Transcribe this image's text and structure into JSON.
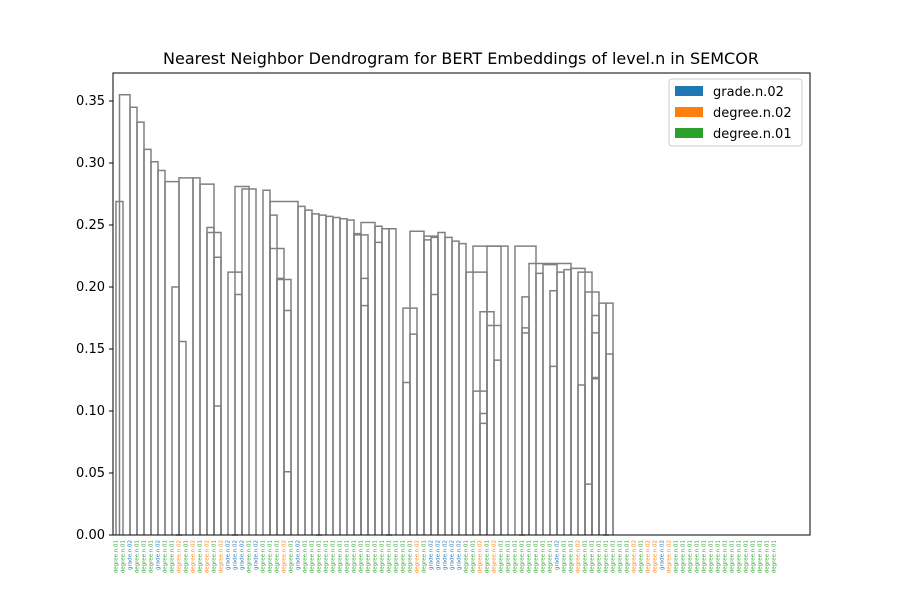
{
  "chart_data": {
    "type": "dendrogram",
    "title": "Nearest Neighbor Dendrogram for BERT Embeddings of level.n in SEMCOR",
    "xlabel": "",
    "ylabel": "",
    "ylim": [
      0,
      0.37
    ],
    "yticks": [
      0.0,
      0.05,
      0.1,
      0.15,
      0.2,
      0.25,
      0.3,
      0.35
    ],
    "ytick_labels": [
      "0.00",
      "0.05",
      "0.10",
      "0.15",
      "0.20",
      "0.25",
      "0.30",
      "0.35"
    ],
    "grid": false,
    "legend": {
      "placement": "top-right",
      "entries": [
        {
          "label": "grade.n.02",
          "color": "#1f77b4"
        },
        {
          "label": "degree.n.02",
          "color": "#ff7f0e"
        },
        {
          "label": "degree.n.01",
          "color": "#2ca02c"
        }
      ]
    },
    "link_color": "#808080",
    "leaf_labels": [
      "degree.n.01",
      "degree.n.01",
      "grade.n.02",
      "degree.n.01",
      "degree.n.01",
      "degree.n.01",
      "grade.n.02",
      "degree.n.01",
      "degree.n.01",
      "degree.n.02",
      "degree.n.01",
      "degree.n.02",
      "degree.n.01",
      "degree.n.02",
      "degree.n.01",
      "degree.n.02",
      "grade.n.02",
      "grade.n.02",
      "grade.n.02",
      "degree.n.01",
      "grade.n.02",
      "degree.n.01",
      "degree.n.01",
      "degree.n.01",
      "degree.n.02",
      "degree.n.01",
      "grade.n.02",
      "degree.n.01",
      "degree.n.01",
      "degree.n.01",
      "degree.n.01",
      "degree.n.01",
      "degree.n.01",
      "degree.n.01",
      "degree.n.01",
      "degree.n.01",
      "degree.n.01",
      "degree.n.01",
      "degree.n.01",
      "degree.n.01",
      "degree.n.01",
      "degree.n.01",
      "degree.n.01",
      "degree.n.02",
      "degree.n.01",
      "grade.n.02",
      "grade.n.02",
      "grade.n.02",
      "grade.n.02",
      "grade.n.02",
      "degree.n.01",
      "degree.n.01",
      "degree.n.02",
      "degree.n.01",
      "degree.n.02",
      "degree.n.01",
      "degree.n.01",
      "degree.n.01",
      "degree.n.01",
      "degree.n.01",
      "degree.n.01",
      "degree.n.01",
      "degree.n.01",
      "grade.n.02",
      "degree.n.01",
      "degree.n.01",
      "degree.n.02",
      "degree.n.01",
      "degree.n.01",
      "degree.n.01",
      "degree.n.01",
      "degree.n.01",
      "degree.n.01",
      "degree.n.01",
      "degree.n.02",
      "degree.n.01",
      "degree.n.02",
      "degree.n.02",
      "grade.n.02",
      "degree.n.02",
      "degree.n.01",
      "degree.n.01",
      "degree.n.01",
      "degree.n.01",
      "degree.n.01",
      "degree.n.01",
      "degree.n.01",
      "degree.n.01",
      "degree.n.01",
      "degree.n.01",
      "degree.n.01",
      "degree.n.01",
      "degree.n.01",
      "degree.n.01",
      "degree.n.01"
    ],
    "links": [
      {
        "l": 0,
        "r": 1,
        "h": 0.269
      },
      {
        "l": 0.5,
        "r": 2,
        "h": 0.355
      },
      {
        "l": 2,
        "r": 3,
        "h": 0.345
      },
      {
        "l": 3,
        "r": 4,
        "h": 0.333
      },
      {
        "l": 4,
        "r": 5,
        "h": 0.311
      },
      {
        "l": 5,
        "r": 6,
        "h": 0.301
      },
      {
        "l": 6,
        "r": 7,
        "h": 0.294
      },
      {
        "l": 8,
        "r": 9,
        "h": 0.2
      },
      {
        "l": 9,
        "r": 10,
        "h": 0.156
      },
      {
        "l": 7,
        "r": 9,
        "h": 0.285
      },
      {
        "l": 9,
        "r": 11,
        "h": 0.288
      },
      {
        "l": 11,
        "r": 12,
        "h": 0.288
      },
      {
        "l": 14,
        "r": 15,
        "h": 0.104
      },
      {
        "l": 14,
        "r": 15,
        "h": 0.224
      },
      {
        "l": 13,
        "r": 15,
        "h": 0.244
      },
      {
        "l": 13,
        "r": 14,
        "h": 0.248
      },
      {
        "l": 12,
        "r": 14,
        "h": 0.283
      },
      {
        "l": 17,
        "r": 18,
        "h": 0.194
      },
      {
        "l": 16,
        "r": 18,
        "h": 0.212
      },
      {
        "l": 17,
        "r": 19,
        "h": 0.281
      },
      {
        "l": 18,
        "r": 20,
        "h": 0.279
      },
      {
        "l": 21,
        "r": 22,
        "h": 0.278
      },
      {
        "l": 24,
        "r": 25,
        "h": 0.051
      },
      {
        "l": 24,
        "r": 25,
        "h": 0.181
      },
      {
        "l": 23,
        "r": 25,
        "h": 0.206
      },
      {
        "l": 23,
        "r": 24,
        "h": 0.207
      },
      {
        "l": 22,
        "r": 24,
        "h": 0.231
      },
      {
        "l": 22,
        "r": 23,
        "h": 0.258
      },
      {
        "l": 22,
        "r": 26,
        "h": 0.269
      },
      {
        "l": 26,
        "r": 27,
        "h": 0.265
      },
      {
        "l": 27,
        "r": 28,
        "h": 0.262
      },
      {
        "l": 28,
        "r": 29,
        "h": 0.259
      },
      {
        "l": 29,
        "r": 30,
        "h": 0.258
      },
      {
        "l": 30,
        "r": 31,
        "h": 0.257
      },
      {
        "l": 31,
        "r": 32,
        "h": 0.256
      },
      {
        "l": 32,
        "r": 33,
        "h": 0.255
      },
      {
        "l": 33,
        "r": 34,
        "h": 0.254
      },
      {
        "l": 35,
        "r": 36,
        "h": 0.185
      },
      {
        "l": 35,
        "r": 36,
        "h": 0.207
      },
      {
        "l": 34,
        "r": 36,
        "h": 0.242
      },
      {
        "l": 34,
        "r": 35,
        "h": 0.243
      },
      {
        "l": 35,
        "r": 37,
        "h": 0.252
      },
      {
        "l": 37,
        "r": 38,
        "h": 0.236
      },
      {
        "l": 37,
        "r": 38,
        "h": 0.249
      },
      {
        "l": 38,
        "r": 39,
        "h": 0.247
      },
      {
        "l": 39,
        "r": 40,
        "h": 0.247
      },
      {
        "l": 41,
        "r": 42,
        "h": 0.123
      },
      {
        "l": 42,
        "r": 43,
        "h": 0.162
      },
      {
        "l": 41,
        "r": 43,
        "h": 0.183
      },
      {
        "l": 42,
        "r": 44,
        "h": 0.245
      },
      {
        "l": 44,
        "r": 45,
        "h": 0.238
      },
      {
        "l": 45,
        "r": 46,
        "h": 0.194
      },
      {
        "l": 45,
        "r": 46,
        "h": 0.24
      },
      {
        "l": 44,
        "r": 46,
        "h": 0.241
      },
      {
        "l": 46,
        "r": 47,
        "h": 0.244
      },
      {
        "l": 47,
        "r": 48,
        "h": 0.24
      },
      {
        "l": 48,
        "r": 49,
        "h": 0.237
      },
      {
        "l": 49,
        "r": 50,
        "h": 0.235
      },
      {
        "l": 52,
        "r": 53,
        "h": 0.09
      },
      {
        "l": 52,
        "r": 53,
        "h": 0.098
      },
      {
        "l": 51,
        "r": 53,
        "h": 0.116
      },
      {
        "l": 54,
        "r": 55,
        "h": 0.141
      },
      {
        "l": 53,
        "r": 55,
        "h": 0.169
      },
      {
        "l": 52,
        "r": 54,
        "h": 0.18
      },
      {
        "l": 50,
        "r": 53,
        "h": 0.212
      },
      {
        "l": 51,
        "r": 55,
        "h": 0.233
      },
      {
        "l": 53,
        "r": 56,
        "h": 0.233
      },
      {
        "l": 58,
        "r": 59,
        "h": 0.163
      },
      {
        "l": 58,
        "r": 59,
        "h": 0.167
      },
      {
        "l": 58,
        "r": 59,
        "h": 0.192
      },
      {
        "l": 60,
        "r": 61,
        "h": 0.211
      },
      {
        "l": 62,
        "r": 63,
        "h": 0.136
      },
      {
        "l": 62,
        "r": 63,
        "h": 0.197
      },
      {
        "l": 61,
        "r": 63,
        "h": 0.218
      },
      {
        "l": 63,
        "r": 64,
        "h": 0.212
      },
      {
        "l": 64,
        "r": 65,
        "h": 0.214
      },
      {
        "l": 67,
        "r": 68,
        "h": 0.041
      },
      {
        "l": 66,
        "r": 67,
        "h": 0.121
      },
      {
        "l": 68,
        "r": 69,
        "h": 0.126
      },
      {
        "l": 68,
        "r": 69,
        "h": 0.127
      },
      {
        "l": 68,
        "r": 69,
        "h": 0.163
      },
      {
        "l": 68,
        "r": 69,
        "h": 0.177
      },
      {
        "l": 70,
        "r": 71,
        "h": 0.146
      },
      {
        "l": 70,
        "r": 71,
        "h": 0.187
      },
      {
        "l": 69,
        "r": 70,
        "h": 0.187
      },
      {
        "l": 67,
        "r": 69,
        "h": 0.196
      },
      {
        "l": 66,
        "r": 68,
        "h": 0.212
      },
      {
        "l": 65,
        "r": 67,
        "h": 0.215
      },
      {
        "l": 59,
        "r": 65,
        "h": 0.219
      },
      {
        "l": 57,
        "r": 60,
        "h": 0.233
      }
    ]
  }
}
